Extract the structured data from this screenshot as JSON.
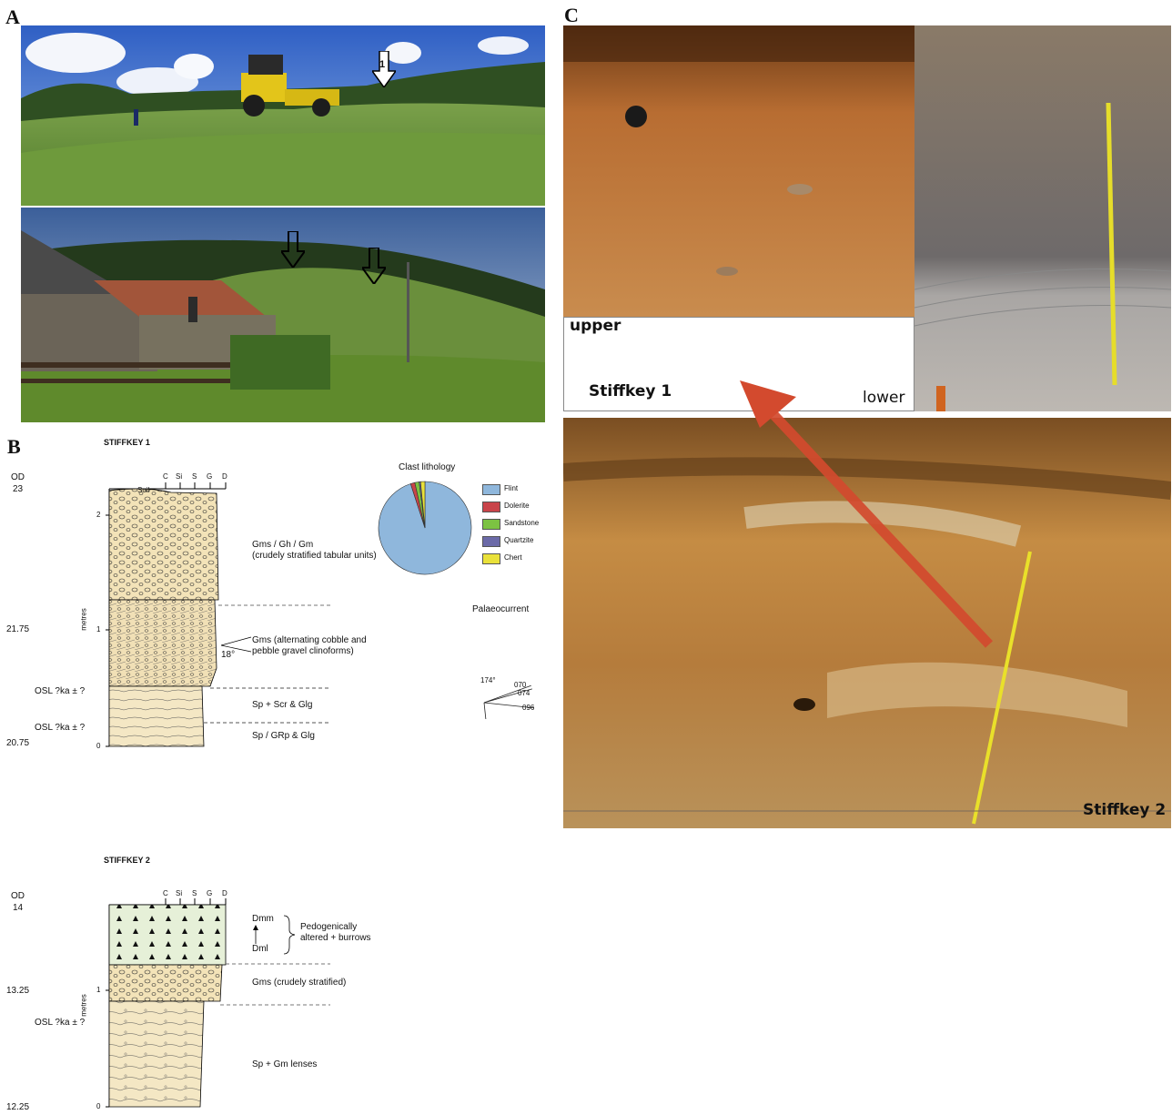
{
  "panels": {
    "a": "A",
    "b": "B",
    "c": "C"
  },
  "photo_a": {
    "arrow_label": "1"
  },
  "photo_c": {
    "upper_label": "upper",
    "lower_label": "lower",
    "stiffkey1_label": "Stiffkey 1",
    "stiffkey2_label": "Stiffkey 2"
  },
  "log1": {
    "title": "STIFFKEY 1",
    "od_label": "OD",
    "od_value": "23",
    "elev_mid": "21.75",
    "elev_base": "20.75",
    "osl_1": "OSL ?ka ± ?",
    "osl_2": "OSL ?ka ± ?",
    "grain_headers": [
      "C",
      "Si",
      "S",
      "G",
      "D"
    ],
    "soil": "Soil",
    "scale_ticks": [
      "2",
      "1",
      "0"
    ],
    "scale_unit": "metres",
    "units": [
      {
        "code": "Gms / Gh / Gm",
        "desc": "(crudely stratified tabular units)"
      },
      {
        "code": "Gms (alternating cobble and",
        "desc": "pebble gravel clinoforms)"
      },
      {
        "code": "Sp + Scr & Glg",
        "desc": ""
      },
      {
        "code": "Sp / GRp & Glg",
        "desc": ""
      }
    ],
    "dip": "18°"
  },
  "log2": {
    "title": "STIFFKEY 2",
    "od_label": "OD",
    "od_value": "14",
    "elev_mid": "13.25",
    "elev_base": "12.25",
    "osl_1": "OSL ?ka ± ?",
    "grain_headers": [
      "C",
      "Si",
      "S",
      "G",
      "D"
    ],
    "scale_ticks": [
      "1",
      "0"
    ],
    "scale_unit": "metres",
    "dmm": "Dmm",
    "dml": "Dml",
    "pedo_1": "Pedogenically",
    "pedo_2": "altered + burrows",
    "gms": "Gms (crudely stratified)",
    "sp": "Sp + Gm lenses"
  },
  "pie": {
    "title": "Clast lithology",
    "legend": [
      {
        "label": "Flint",
        "color": "#8fb7dc"
      },
      {
        "label": "Dolerite",
        "color": "#c9444a"
      },
      {
        "label": "Sandstone",
        "color": "#7cc242"
      },
      {
        "label": "Quartzite",
        "color": "#6b6aa8"
      },
      {
        "label": "Chert",
        "color": "#e9e13a"
      }
    ]
  },
  "chart_data": {
    "type": "pie",
    "title": "Clast lithology",
    "labels": [
      "Flint",
      "Dolerite",
      "Sandstone",
      "Quartzite",
      "Chert"
    ],
    "values": [
      95,
      1.5,
      1.5,
      0.5,
      1.5
    ],
    "colors": [
      "#8fb7dc",
      "#c9444a",
      "#7cc242",
      "#6b6aa8",
      "#e9e13a"
    ]
  },
  "palaeo": {
    "title": "Palaeocurrent",
    "readings": [
      "174°",
      "070",
      "074",
      "096"
    ],
    "angles": [
      174,
      70,
      74,
      96
    ]
  }
}
